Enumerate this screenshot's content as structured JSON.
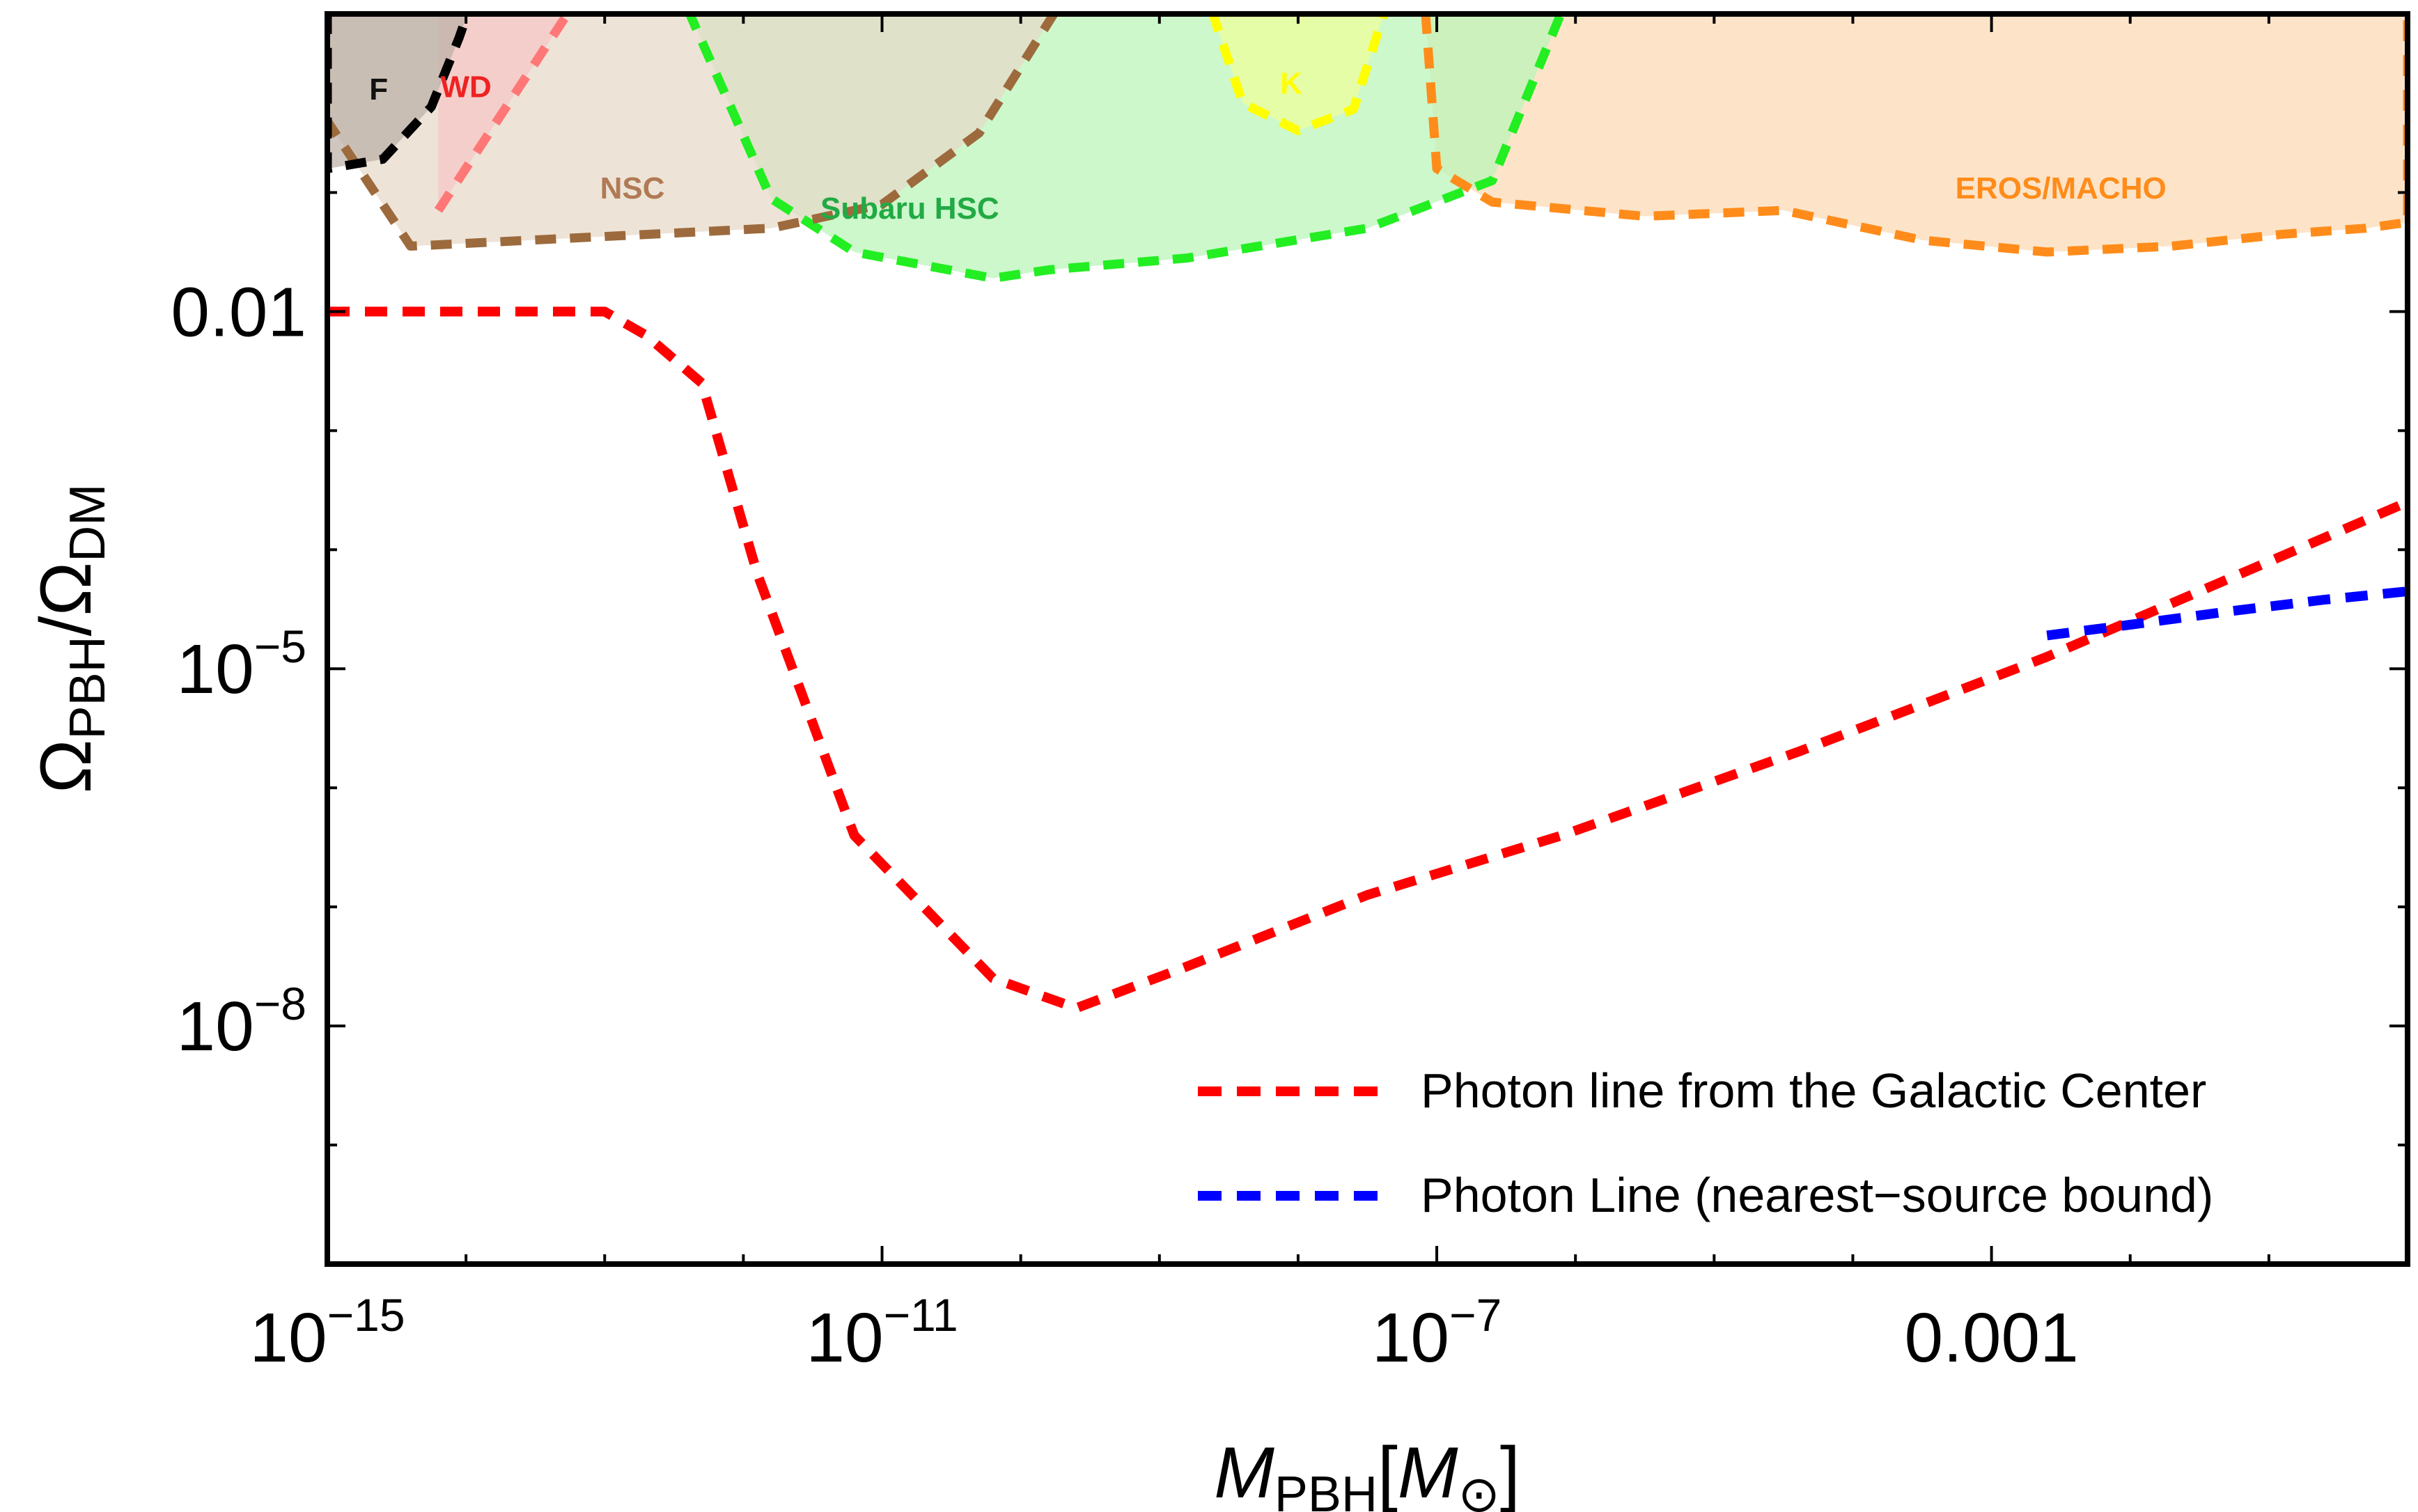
{
  "chart_data": {
    "type": "line",
    "title": "",
    "xlabel": "M_PBH[M_⊙]",
    "ylabel": "Ω_PBH/Ω_DM",
    "x_scale": "log",
    "y_scale": "log",
    "xlim_log10": [
      -15,
      0
    ],
    "ylim_log10": [
      -10,
      0.5
    ],
    "grid": false,
    "legend_position": "bottom-right",
    "x_ticks": [
      {
        "log10": -15,
        "label": "10",
        "exp": "−15"
      },
      {
        "log10": -11,
        "label": "10",
        "exp": "−11"
      },
      {
        "log10": -7,
        "label": "10",
        "exp": "−7"
      },
      {
        "log10": -3,
        "label": "0.001",
        "exp": ""
      }
    ],
    "y_ticks": [
      {
        "log10": -2,
        "label": "0.01",
        "exp": ""
      },
      {
        "log10": -5,
        "label": "10",
        "exp": "−5"
      },
      {
        "log10": -8,
        "label": "10",
        "exp": "−8"
      }
    ],
    "x_minor_log10": [
      -14,
      -13,
      -12,
      -10,
      -9,
      -8,
      -6,
      -5,
      -4,
      -2,
      -1
    ],
    "y_minor_log10": [
      -1,
      -3,
      -4,
      -6,
      -7,
      -9
    ],
    "series": [
      {
        "name": "Photon line from the Galactic Center",
        "color": "#ff0000",
        "points": [
          [
            -15,
            -2.0
          ],
          [
            -13,
            -2.0
          ],
          [
            -12.7,
            -2.2
          ],
          [
            -12.3,
            -2.6
          ],
          [
            -11.9,
            -4.2
          ],
          [
            -11.2,
            -6.4
          ],
          [
            -10.2,
            -7.6
          ],
          [
            -9.6,
            -7.85
          ],
          [
            -8.8,
            -7.5
          ],
          [
            -7.5,
            -6.9
          ],
          [
            -6.1,
            -6.4
          ],
          [
            -4.4,
            -5.7
          ],
          [
            -2.6,
            -4.9
          ],
          [
            0,
            -3.6
          ]
        ]
      },
      {
        "name": "Photon Line (nearest−source bound)",
        "color": "#0000ff",
        "points": [
          [
            -2.6,
            -4.72
          ],
          [
            -2.0,
            -4.63
          ],
          [
            -1.3,
            -4.52
          ],
          [
            -0.6,
            -4.42
          ],
          [
            0,
            -4.35
          ]
        ]
      }
    ],
    "regions": [
      {
        "name": "EROS/MACHO",
        "edge_color": "#ff8c1a",
        "fill": "#fcd9b4",
        "label_color": "#ff8c1a",
        "label_pos": [
          -2.5,
          -1.05
        ],
        "boundary": [
          [
            -7.1,
            0.8
          ],
          [
            -7.0,
            -0.8
          ],
          [
            -6.6,
            -1.08
          ],
          [
            -5.5,
            -1.2
          ],
          [
            -4.5,
            -1.15
          ],
          [
            -3.5,
            -1.4
          ],
          [
            -2.6,
            -1.5
          ],
          [
            -1.7,
            -1.45
          ],
          [
            -0.9,
            -1.35
          ],
          [
            -0.3,
            -1.3
          ],
          [
            0,
            -1.25
          ],
          [
            0,
            0.8
          ]
        ]
      },
      {
        "name": "Subaru HSC",
        "edge_color": "#22ee22",
        "fill": "#b8f5b8",
        "label_color": "#22aa44",
        "label_pos": [
          -10.8,
          -1.22
        ],
        "boundary": [
          [
            -12.5,
            0.8
          ],
          [
            -11.8,
            -1.05
          ],
          [
            -11.2,
            -1.5
          ],
          [
            -10.2,
            -1.72
          ],
          [
            -9.8,
            -1.65
          ],
          [
            -8.8,
            -1.55
          ],
          [
            -7.5,
            -1.3
          ],
          [
            -6.6,
            -0.9
          ],
          [
            -6.0,
            0.8
          ]
        ]
      },
      {
        "name": "NSC",
        "edge_color": "#9c6a3c",
        "fill": "#e7d8c8",
        "label_color": "#b07a55",
        "label_pos": [
          -12.8,
          -1.05
        ],
        "boundary": [
          [
            -15,
            0.8
          ],
          [
            -15,
            -0.4
          ],
          [
            -14.4,
            -1.45
          ],
          [
            -11.8,
            -1.3
          ],
          [
            -11.0,
            -1.1
          ],
          [
            -10.3,
            -0.5
          ],
          [
            -9.6,
            0.8
          ]
        ]
      },
      {
        "name": "K",
        "edge_color": "#ffff00",
        "fill": "#eeff99",
        "label_color": "#ffff00",
        "label_pos": [
          -8.05,
          -0.17
        ],
        "boundary": [
          [
            -8.7,
            0.8
          ],
          [
            -8.4,
            -0.25
          ],
          [
            -8.0,
            -0.48
          ],
          [
            -7.6,
            -0.3
          ],
          [
            -7.3,
            0.8
          ]
        ]
      },
      {
        "name": "WD",
        "edge_color": "#ff7777",
        "fill": "#f7c6c6",
        "label_color": "#ee2222",
        "label_pos": [
          -14.0,
          -0.2
        ],
        "boundary": [
          [
            -14.2,
            -1.15
          ],
          [
            -13.1,
            0.8
          ],
          [
            -14.2,
            0.8
          ]
        ]
      },
      {
        "name": "F",
        "edge_color": "#000000",
        "fill": "#bbb0a6",
        "label_color": "#111111",
        "label_pos": [
          -14.63,
          -0.22
        ],
        "boundary": [
          [
            -15,
            0.8
          ],
          [
            -15,
            -0.8
          ],
          [
            -14.6,
            -0.72
          ],
          [
            -14.25,
            -0.28
          ],
          [
            -14.05,
            0.3
          ],
          [
            -13.9,
            0.8
          ]
        ]
      }
    ]
  }
}
